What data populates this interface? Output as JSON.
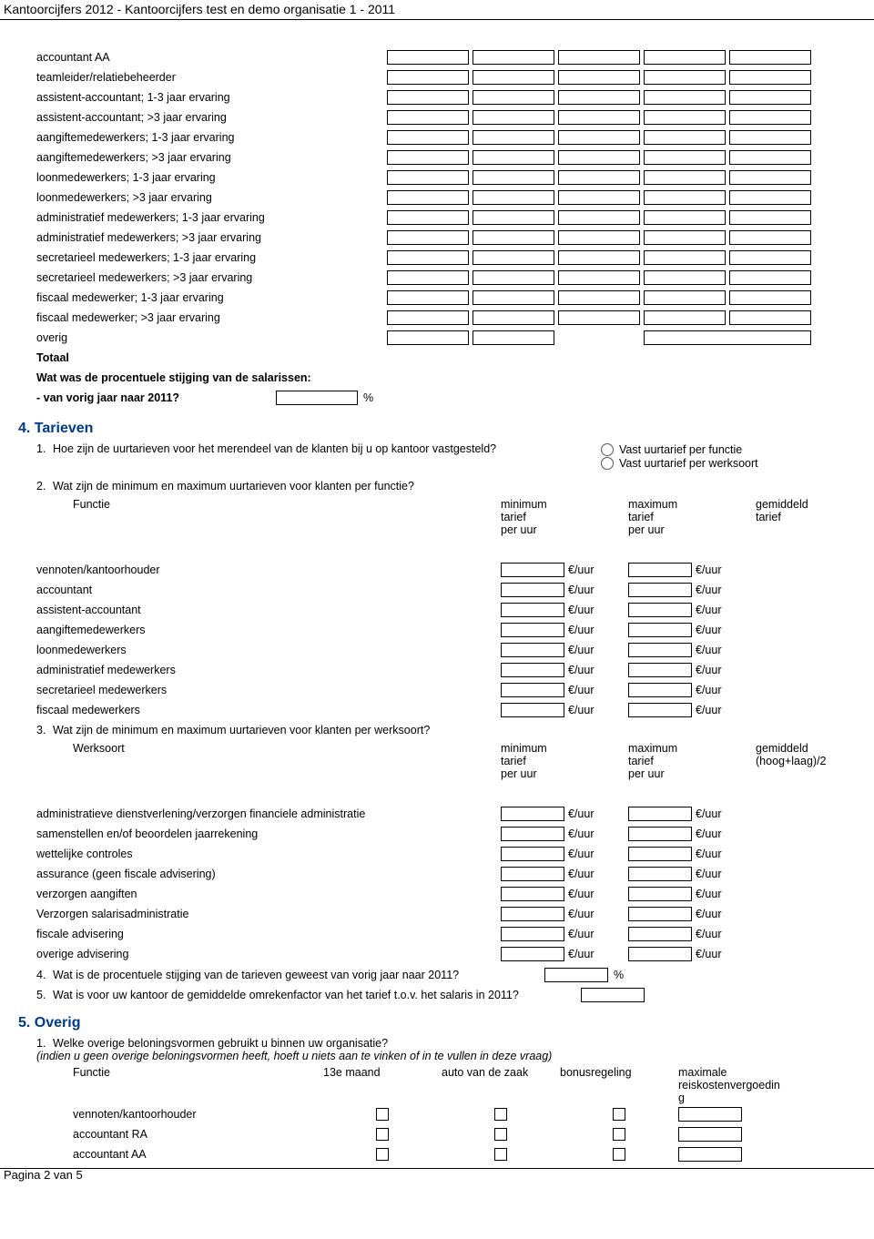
{
  "header": "Kantoorcijfers 2012 - Kantoorcijfers test en demo organisatie 1 - 2011",
  "roles": [
    "accountant AA",
    "teamleider/relatiebeheerder",
    "assistent-accountant; 1-3 jaar ervaring",
    "assistent-accountant; >3 jaar ervaring",
    "aangiftemedewerkers; 1-3 jaar ervaring",
    "aangiftemedewerkers; >3 jaar ervaring",
    "loonmedewerkers; 1-3 jaar ervaring",
    "loonmedewerkers; >3 jaar ervaring",
    "administratief medewerkers; 1-3 jaar ervaring",
    "administratief medewerkers; >3 jaar ervaring",
    "secretarieel medewerkers; 1-3 jaar ervaring",
    "secretarieel medewerkers; >3 jaar ervaring",
    "fiscaal medewerker; 1-3 jaar ervaring",
    "fiscaal medewerker; >3 jaar ervaring"
  ],
  "overig_label": "overig",
  "totaal_label": "Totaal",
  "pct_q": "Wat was de procentuele stijging van de salarissen:",
  "pct_line": "- van vorig jaar naar 2011?",
  "pct_sym": "%",
  "section4": "4. Tarieven",
  "q41": "Hoe zijn de uurtarieven voor het merendeel van de klanten bij u op kantoor vastgesteld?",
  "radio1": "Vast uurtarief per functie",
  "radio2": "Vast uurtarief per werksoort",
  "q42": "Wat zijn de minimum en maximum uurtarieven voor klanten per functie?",
  "col_functie": "Functie",
  "col_min": "minimum",
  "col_max": "maximum",
  "col_tarief": "tarief",
  "col_peruur": "per uur",
  "col_gemiddeld": "gemiddeld",
  "col_hooglaag": "(hoog+laag)/2",
  "euro_uur": "€/uur",
  "functies": [
    "vennoten/kantoorhouder",
    "accountant",
    "assistent-accountant",
    "aangiftemedewerkers",
    "loonmedewerkers",
    "administratief medewerkers",
    "secretarieel medewerkers",
    "fiscaal medewerkers"
  ],
  "q43": "Wat zijn de minimum en maximum uurtarieven voor klanten per werksoort?",
  "col_werksoort": "Werksoort",
  "werksoorten": [
    "administratieve dienstverlening/verzorgen financiele administratie",
    "samenstellen en/of beoordelen jaarrekening",
    "wettelijke controles",
    "assurance (geen fiscale advisering)",
    "verzorgen aangiften",
    "Verzorgen salarisadministratie",
    "fiscale advisering",
    "overige advisering"
  ],
  "q44": "Wat is de procentuele stijging van de tarieven geweest van vorig jaar naar 2011?",
  "q45": "Wat is voor uw kantoor de gemiddelde omrekenfactor van het tarief t.o.v. het salaris in 2011?",
  "section5": "5. Overig",
  "q51": "Welke overige beloningsvormen gebruikt u binnen uw organisatie?",
  "q51_note": "(indien u geen overige beloningsvormen heeft, hoeft u niets aan te vinken of in te vullen in deze vraag)",
  "col_13e": "13e maand",
  "col_auto": "auto van de zaak",
  "col_bonus": "bonusregeling",
  "col_reis1": "maximale",
  "col_reis2": "reiskostenvergoedin",
  "col_reis3": "g",
  "overig_functies": [
    "vennoten/kantoorhouder",
    "accountant RA",
    "accountant AA"
  ],
  "footer": "Pagina 2 van 5"
}
